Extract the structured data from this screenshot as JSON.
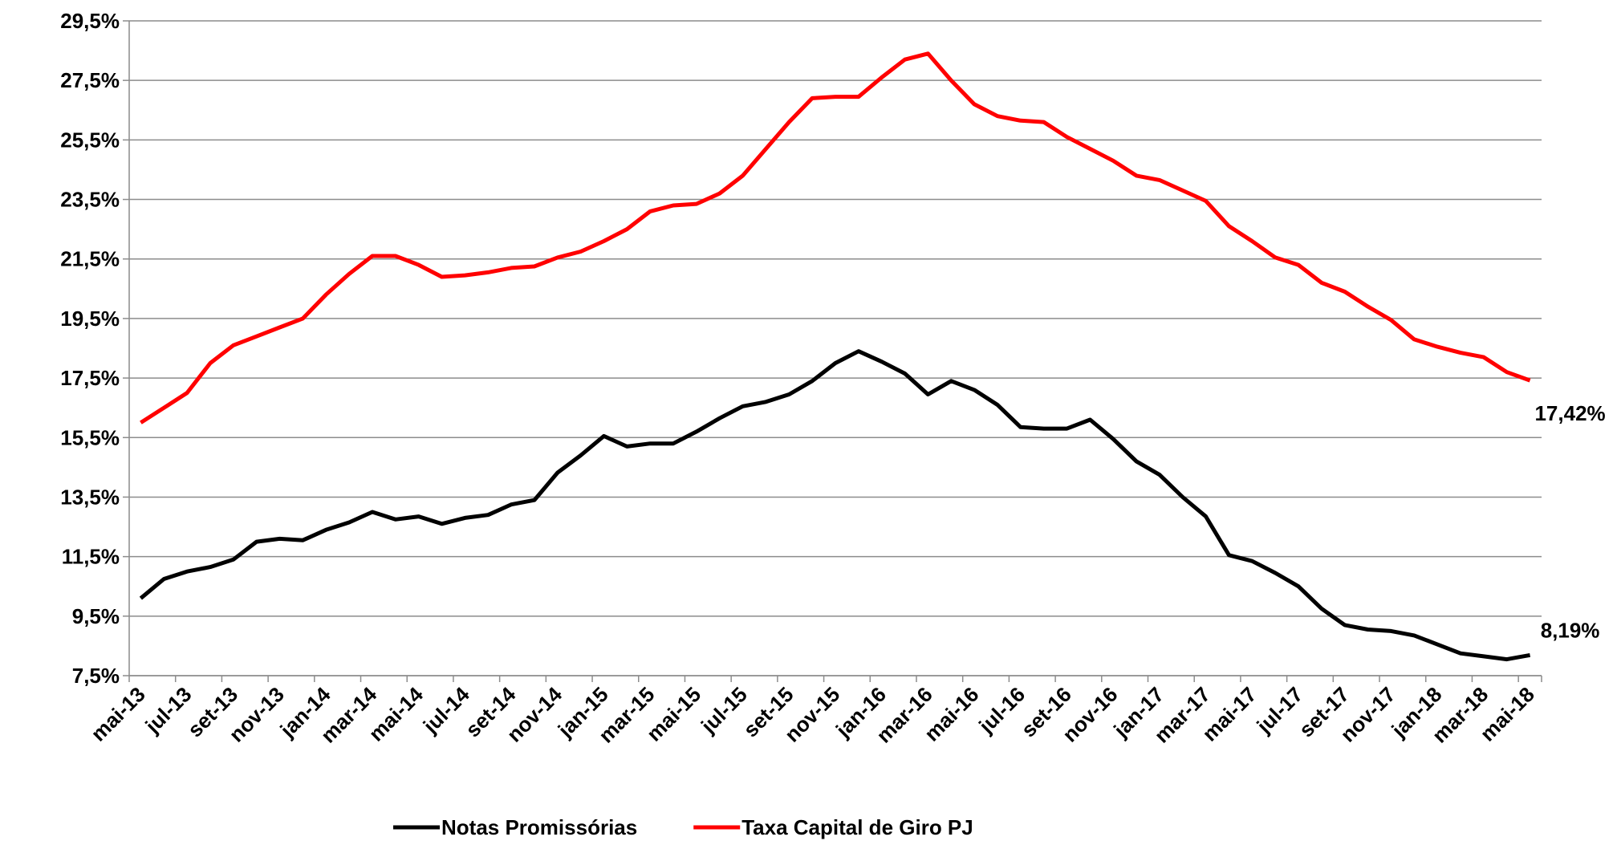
{
  "chart_data": {
    "type": "line",
    "categories": [
      "mai-13",
      null,
      "jul-13",
      null,
      "set-13",
      null,
      "nov-13",
      null,
      "jan-14",
      null,
      "mar-14",
      null,
      "mai-14",
      null,
      "jul-14",
      null,
      "set-14",
      null,
      "nov-14",
      null,
      "jan-15",
      null,
      "mar-15",
      null,
      "mai-15",
      null,
      "jul-15",
      null,
      "set-15",
      null,
      "nov-15",
      null,
      "jan-16",
      null,
      "mar-16",
      null,
      "mai-16",
      null,
      "jul-16",
      null,
      "set-16",
      null,
      "nov-16",
      null,
      "jan-17",
      null,
      "mar-17",
      null,
      "mai-17",
      null,
      "jul-17",
      null,
      "set-17",
      null,
      "nov-17",
      null,
      "jan-18",
      null,
      "mar-18",
      null,
      "mai-18"
    ],
    "series": [
      {
        "name": "Notas Promissórias",
        "color": "#000000",
        "values": [
          10.1,
          10.75,
          11.0,
          11.15,
          11.4,
          12.0,
          12.1,
          12.05,
          12.4,
          12.65,
          13.0,
          12.75,
          12.85,
          12.6,
          12.8,
          12.9,
          13.25,
          13.4,
          14.32,
          14.9,
          15.55,
          15.2,
          15.3,
          15.3,
          15.7,
          16.15,
          16.55,
          16.7,
          16.95,
          17.4,
          18.0,
          18.4,
          18.05,
          17.65,
          16.95,
          17.4,
          17.1,
          16.6,
          15.85,
          15.8,
          15.8,
          16.1,
          15.45,
          14.7,
          14.25,
          13.5,
          12.85,
          11.55,
          11.35,
          10.95,
          10.5,
          9.75,
          9.2,
          9.05,
          9.0,
          8.85,
          8.55,
          8.25,
          8.15,
          8.05,
          8.19
        ],
        "value_labels": [
          null,
          null,
          null,
          null,
          null,
          null,
          null,
          null,
          null,
          null,
          null,
          null,
          null,
          null,
          null,
          null,
          null,
          null,
          null,
          null,
          null,
          null,
          null,
          null,
          null,
          null,
          null,
          null,
          null,
          null,
          null,
          null,
          null,
          null,
          null,
          null,
          null,
          null,
          null,
          null,
          null,
          null,
          null,
          null,
          null,
          null,
          null,
          null,
          null,
          null,
          null,
          null,
          null,
          null,
          null,
          null,
          null,
          null,
          null,
          null,
          "8,19%"
        ],
        "value_label_color": "#000000"
      },
      {
        "name": "Taxa Capital de Giro PJ",
        "color": "#ff0000",
        "values": [
          16.0,
          16.5,
          17.0,
          18.0,
          18.6,
          18.9,
          19.2,
          19.5,
          20.3,
          21.0,
          21.6,
          21.6,
          21.3,
          20.9,
          20.95,
          21.05,
          21.2,
          21.25,
          21.55,
          21.75,
          22.1,
          22.5,
          23.1,
          23.3,
          23.35,
          23.7,
          24.3,
          25.2,
          26.1,
          26.9,
          26.95,
          26.95,
          27.6,
          28.2,
          28.4,
          27.5,
          26.7,
          26.3,
          26.15,
          26.1,
          25.6,
          25.2,
          24.8,
          24.3,
          24.15,
          23.8,
          23.45,
          22.6,
          22.1,
          21.55,
          21.3,
          20.7,
          20.4,
          19.9,
          19.45,
          18.8,
          18.55,
          18.35,
          18.2,
          17.7,
          17.42
        ],
        "value_labels": [
          null,
          null,
          null,
          null,
          null,
          null,
          null,
          null,
          null,
          null,
          null,
          null,
          null,
          null,
          null,
          null,
          null,
          null,
          null,
          null,
          null,
          null,
          null,
          null,
          null,
          null,
          null,
          null,
          null,
          null,
          null,
          null,
          null,
          null,
          null,
          null,
          null,
          null,
          null,
          null,
          null,
          null,
          null,
          null,
          null,
          null,
          null,
          null,
          null,
          null,
          null,
          null,
          null,
          null,
          null,
          null,
          null,
          null,
          null,
          null,
          "17,42%"
        ],
        "value_label_color": "#e8174b"
      }
    ],
    "ylim": [
      7.5,
      29.5
    ],
    "yticks": [
      {
        "value": 7.5,
        "label": "7,5%"
      },
      {
        "value": 9.5,
        "label": "9,5%"
      },
      {
        "value": 11.5,
        "label": "11,5%"
      },
      {
        "value": 13.5,
        "label": "13,5%"
      },
      {
        "value": 15.5,
        "label": "15,5%"
      },
      {
        "value": 17.5,
        "label": "17,5%"
      },
      {
        "value": 19.5,
        "label": "19,5%"
      },
      {
        "value": 21.5,
        "label": "21,5%"
      },
      {
        "value": 23.5,
        "label": "23,5%"
      },
      {
        "value": 25.5,
        "label": "25,5%"
      },
      {
        "value": 27.5,
        "label": "27,5%"
      },
      {
        "value": 29.5,
        "label": "29,5%"
      }
    ],
    "grid": true,
    "legend": "bottom"
  }
}
